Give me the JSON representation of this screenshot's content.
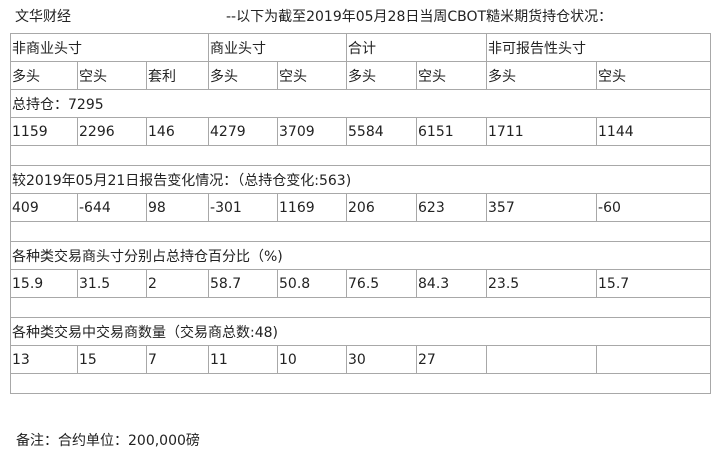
{
  "source": "文华财经",
  "heading": "--以下为截至2019年05月28日当周CBOT糙米期货持仓状况：",
  "groups": [
    "非商业头寸",
    "商业头寸",
    "合计",
    "非可报告性头寸"
  ],
  "columns": [
    "多头",
    "空头",
    "套利",
    "多头",
    "空头",
    "多头",
    "空头",
    "多头",
    "空头"
  ],
  "sections": [
    {
      "label": "总持仓：7295",
      "values": [
        "1159",
        "2296",
        "146",
        "4279",
        "3709",
        "5584",
        "6151",
        "1711",
        "1144"
      ]
    },
    {
      "label": "较2019年05月21日报告变化情况：（总持仓变化:563)",
      "values": [
        "409",
        "-644",
        "98",
        "-301",
        "1169",
        "206",
        "623",
        "357",
        "-60"
      ]
    },
    {
      "label": "各种类交易商头寸分别占总持仓百分比（%)",
      "values": [
        "15.9",
        "31.5",
        "2",
        "58.7",
        "50.8",
        "76.5",
        "84.3",
        "23.5",
        "15.7"
      ]
    },
    {
      "label": "各种类交易中交易商数量（交易商总数:48)",
      "values": [
        "13",
        "15",
        "7",
        "11",
        "10",
        "30",
        "27",
        "",
        ""
      ]
    }
  ],
  "note": "备注：合约单位：200,000磅"
}
